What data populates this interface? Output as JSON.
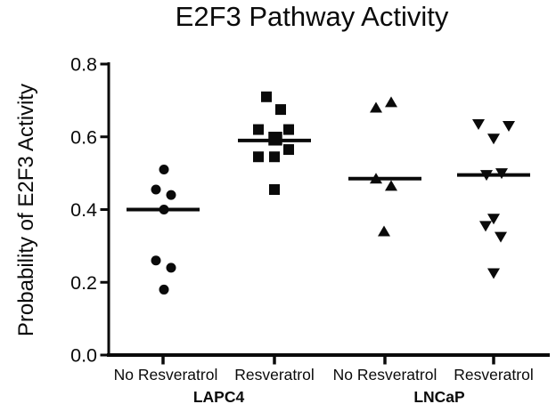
{
  "title": "E2F3 Pathway Activity",
  "chart_data": {
    "type": "scatter",
    "subtype": "column-scatter-with-median-lines",
    "title": "E2F3 Pathway Activity",
    "ylabel": "Probability of E2F3 Activity",
    "xlabel": "",
    "ylim": [
      0.0,
      0.8
    ],
    "yticks": [
      0.0,
      0.2,
      0.4,
      0.6,
      0.8
    ],
    "ytick_labels": [
      "0.0",
      "0.2",
      "0.4",
      "0.6",
      "0.8"
    ],
    "grid": false,
    "legend": "none",
    "marker_color": "#0a0a0a",
    "axis_color": "#0a0a0a",
    "cell_line_labels": [
      "LAPC4",
      "LNCaP"
    ],
    "groups": [
      {
        "condition": "No Resveratrol",
        "cell_line": "LAPC4",
        "marker": "circle",
        "median": 0.4,
        "points": [
          {
            "y": 0.51,
            "dx": 1
          },
          {
            "y": 0.455,
            "dx": -8
          },
          {
            "y": 0.44,
            "dx": 9
          },
          {
            "y": 0.4,
            "dx": 1
          },
          {
            "y": 0.26,
            "dx": -8
          },
          {
            "y": 0.24,
            "dx": 9
          },
          {
            "y": 0.18,
            "dx": 1
          }
        ]
      },
      {
        "condition": "Resveratrol",
        "cell_line": "LAPC4",
        "marker": "square",
        "median": 0.59,
        "points": [
          {
            "y": 0.71,
            "dx": -9
          },
          {
            "y": 0.675,
            "dx": 7
          },
          {
            "y": 0.62,
            "dx": -18
          },
          {
            "y": 0.62,
            "dx": 16
          },
          {
            "y": 0.595,
            "dx": 1,
            "big": true
          },
          {
            "y": 0.565,
            "dx": 16
          },
          {
            "y": 0.545,
            "dx": -18
          },
          {
            "y": 0.545,
            "dx": 0
          },
          {
            "y": 0.455,
            "dx": 0
          }
        ]
      },
      {
        "condition": "No Resveratrol",
        "cell_line": "LNCaP",
        "marker": "triangle-up",
        "median": 0.485,
        "points": [
          {
            "y": 0.695,
            "dx": 7
          },
          {
            "y": 0.68,
            "dx": -10
          },
          {
            "y": 0.485,
            "dx": -10
          },
          {
            "y": 0.465,
            "dx": 7
          },
          {
            "y": 0.34,
            "dx": -1
          }
        ]
      },
      {
        "condition": "Resveratrol",
        "cell_line": "LNCaP",
        "marker": "triangle-down",
        "median": 0.495,
        "points": [
          {
            "y": 0.635,
            "dx": -17
          },
          {
            "y": 0.63,
            "dx": 17
          },
          {
            "y": 0.595,
            "dx": 0
          },
          {
            "y": 0.5,
            "dx": 9
          },
          {
            "y": 0.495,
            "dx": -8
          },
          {
            "y": 0.375,
            "dx": 0
          },
          {
            "y": 0.355,
            "dx": -9
          },
          {
            "y": 0.325,
            "dx": 8
          },
          {
            "y": 0.225,
            "dx": 0
          }
        ]
      }
    ]
  }
}
